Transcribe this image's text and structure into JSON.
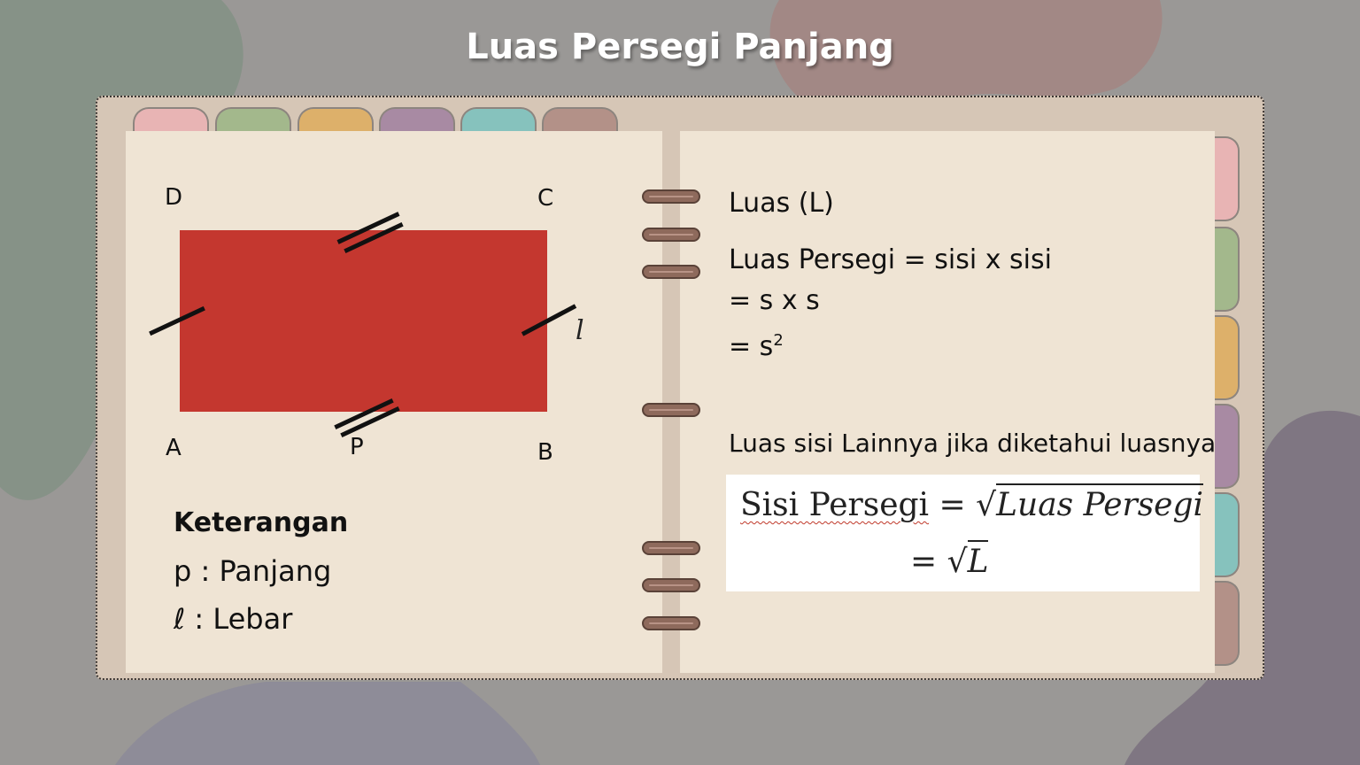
{
  "slide": {
    "title": "Luas Persegi Panjang"
  },
  "colors": {
    "background": "#9a9896",
    "binder": "#d6c6b6",
    "page": "#efe4d4",
    "rectangle": "#c4372f",
    "tabs": [
      "#e8b4b4",
      "#a3b88c",
      "#ddb06a",
      "#a88aa3",
      "#86c2bd",
      "#b39188"
    ]
  },
  "diagram": {
    "vertices": {
      "d": "D",
      "c": "C",
      "a": "A",
      "b": "B",
      "p": "P"
    },
    "width_symbol": "l"
  },
  "legend": {
    "title": "Keterangan",
    "p_line": "p : Panjang",
    "l_line": "ℓ : Lebar"
  },
  "right_page": {
    "luas_heading": "Luas (L)",
    "formula_line1": "Luas Persegi = sisi x sisi",
    "formula_line2": "= s x s",
    "formula_line3_base": "= s",
    "formula_line3_exp": "2",
    "other_side_heading": "Luas sisi Lainnya jika diketahui luasnya"
  },
  "formula_box": {
    "lhs": "Sisi Persegi",
    "equals": "=",
    "radical": "√",
    "rhs": "Luas Persegi",
    "line2_equals": "=",
    "line2_radicand": "L"
  }
}
